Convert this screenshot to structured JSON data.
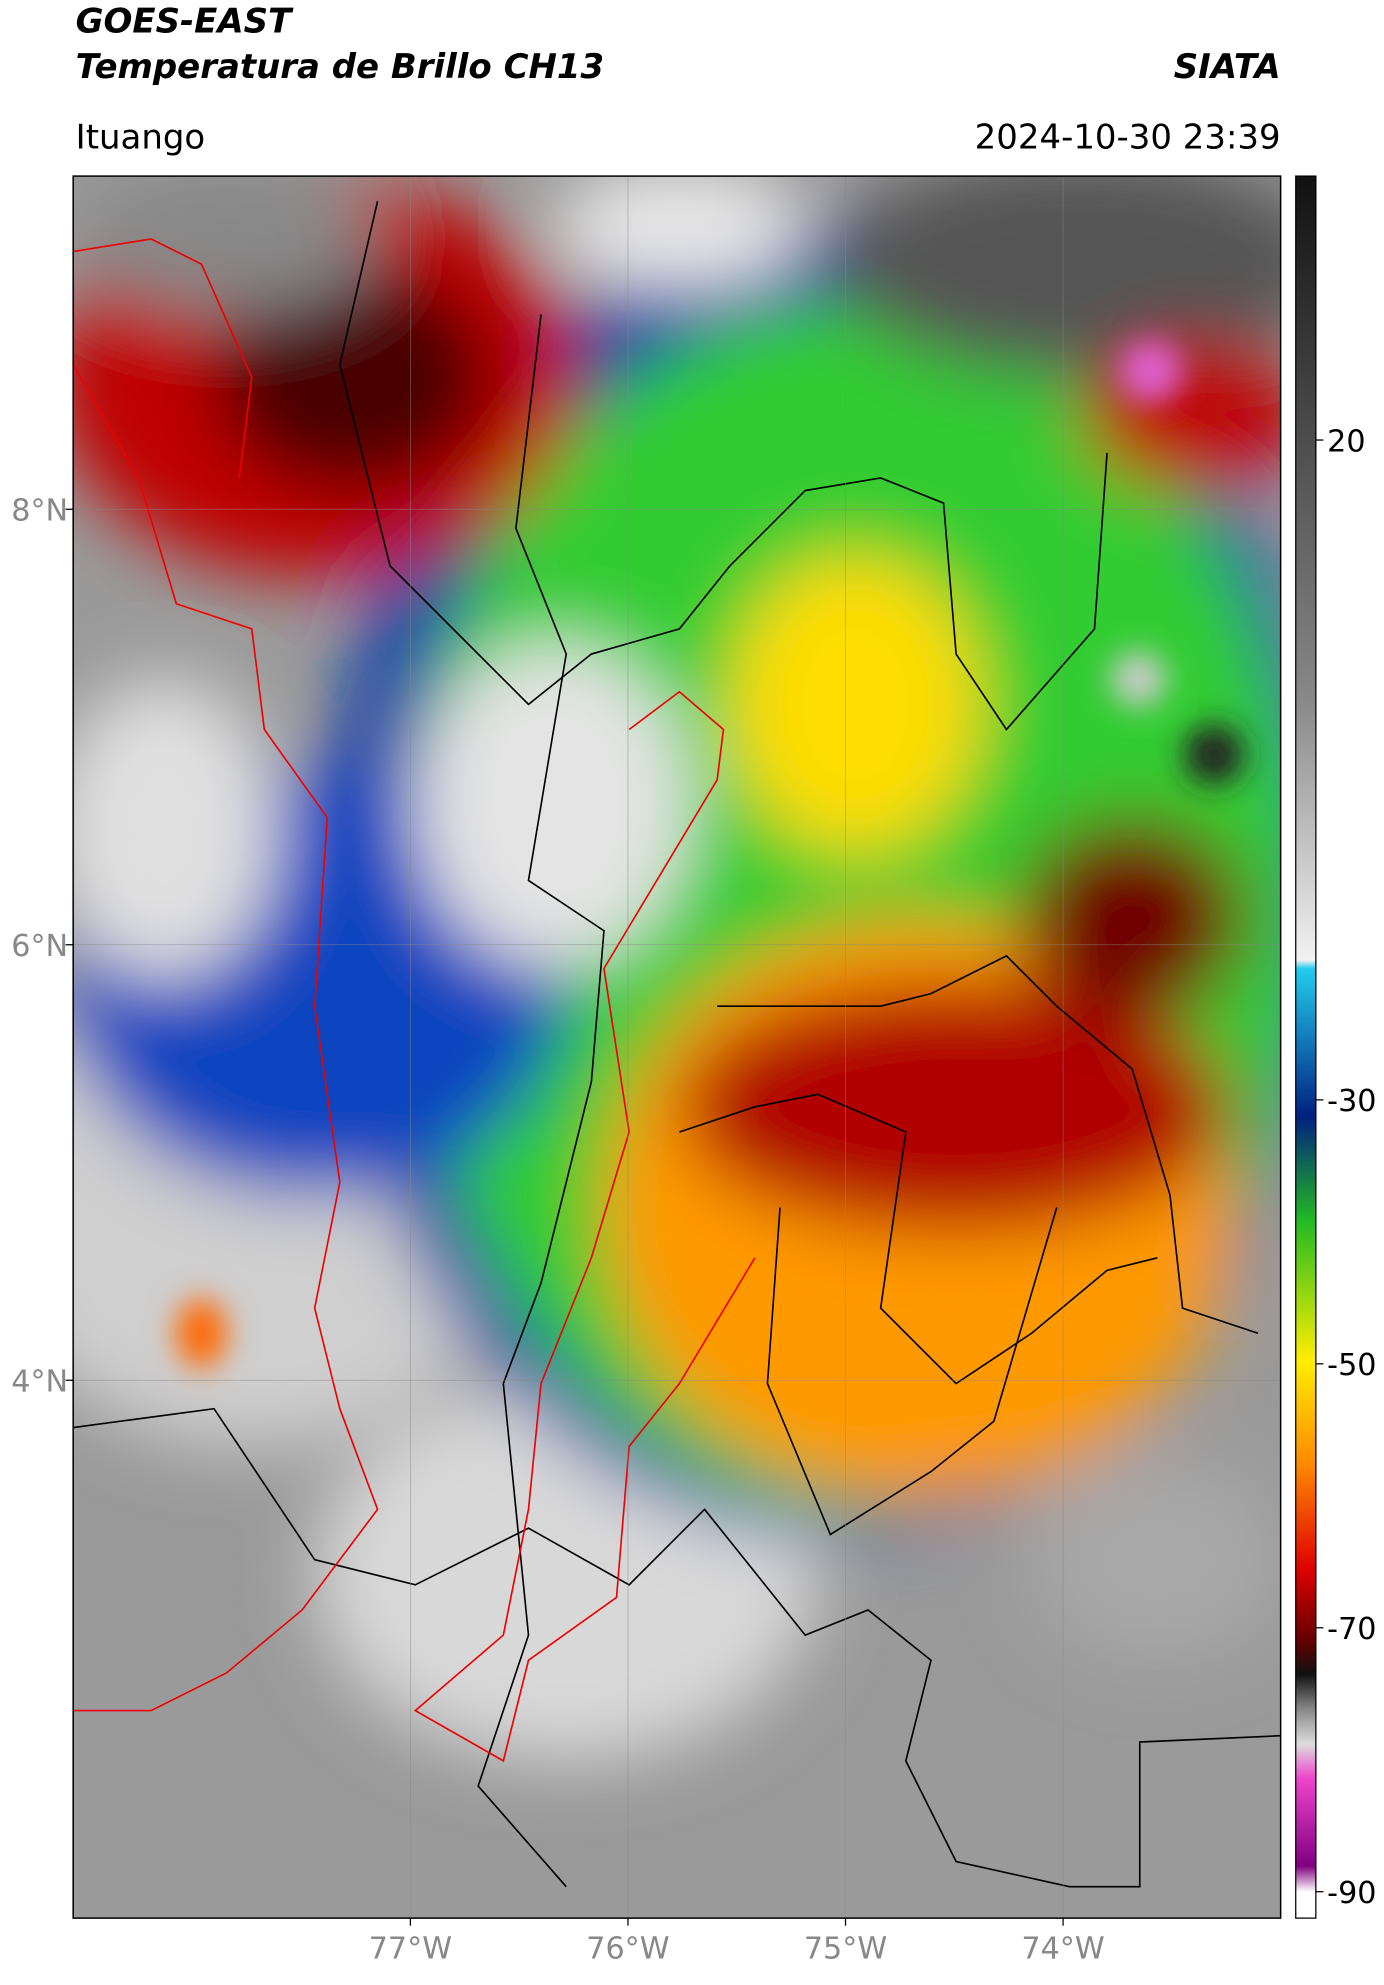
{
  "header": {
    "title": "GOES-EAST",
    "subtitle": "Temperatura de Brillo CH13",
    "source": "SIATA",
    "location": "Ituango",
    "timestamp": "2024-10-30 23:39"
  },
  "map": {
    "xlim": [
      -78.55,
      -73.0
    ],
    "ylim": [
      1.53,
      9.53
    ],
    "xticks": [
      {
        "value": -77,
        "label": "77°W"
      },
      {
        "value": -76,
        "label": "76°W"
      },
      {
        "value": -75,
        "label": "75°W"
      },
      {
        "value": -74,
        "label": "74°W"
      }
    ],
    "yticks": [
      {
        "value": 8,
        "label": "8°N"
      },
      {
        "value": 6,
        "label": "6°N"
      },
      {
        "value": 4,
        "label": "4°N"
      }
    ],
    "grid": true
  },
  "colorbar": {
    "lim": [
      -92,
      40
    ],
    "ticks": [
      20,
      -30,
      -50,
      -70,
      -90
    ]
  }
}
